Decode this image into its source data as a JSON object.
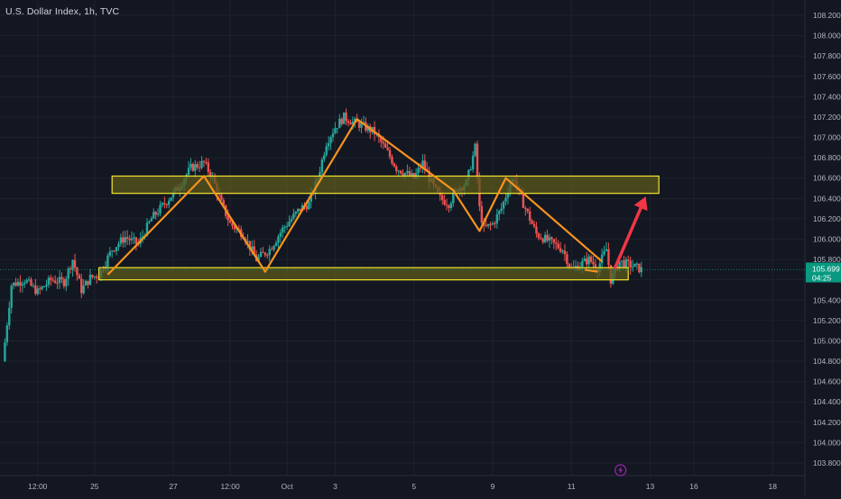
{
  "header": {
    "title": "U.S. Dollar Index, 1h, TVC"
  },
  "price_badge": {
    "value": "105.699",
    "countdown": "04:25"
  },
  "colors": {
    "background": "#131722",
    "grid": "#1e222d",
    "up": "#26a69a",
    "down": "#ef5350",
    "axis_text": "#b2b5be",
    "zone_fill": "#5c5a1c",
    "zone_border": "#f5e62b",
    "pattern_line": "#f7931e",
    "arrow": "#f23645",
    "badge_bg": "#089981"
  },
  "icons": {
    "bottom_marker": "lightning-icon"
  },
  "chart_data": {
    "type": "candlestick",
    "title": "U.S. Dollar Index, 1h, TVC",
    "ylim": [
      103.7,
      108.25
    ],
    "y_ticks": [
      "108.200",
      "108.000",
      "107.800",
      "107.600",
      "107.400",
      "107.200",
      "107.000",
      "106.800",
      "106.600",
      "106.400",
      "106.200",
      "106.000",
      "105.800",
      "105.600",
      "105.400",
      "105.200",
      "105.000",
      "104.800",
      "104.600",
      "104.400",
      "104.200",
      "104.000",
      "103.800"
    ],
    "x_ticks": [
      {
        "label": "12:00",
        "t": 8
      },
      {
        "label": "25",
        "t": 21
      },
      {
        "label": "27",
        "t": 39
      },
      {
        "label": "12:00",
        "t": 52
      },
      {
        "label": "Oct",
        "t": 65
      },
      {
        "label": "3",
        "t": 76
      },
      {
        "label": "5",
        "t": 94
      },
      {
        "label": "9",
        "t": 112
      },
      {
        "label": "11",
        "t": 130
      },
      {
        "label": "13",
        "t": 148
      },
      {
        "label": "16",
        "t": 158
      },
      {
        "label": "18",
        "t": 176
      }
    ],
    "t_range": [
      0,
      184
    ],
    "grid": true,
    "current_price": 105.699,
    "price_path": [
      [
        0,
        104.8
      ],
      [
        2,
        105.55
      ],
      [
        5,
        105.6
      ],
      [
        8,
        105.48
      ],
      [
        11,
        105.6
      ],
      [
        14,
        105.58
      ],
      [
        16,
        105.8
      ],
      [
        18,
        105.5
      ],
      [
        20,
        105.62
      ],
      [
        22,
        105.65
      ],
      [
        25,
        105.9
      ],
      [
        28,
        106.02
      ],
      [
        31,
        105.95
      ],
      [
        34,
        106.2
      ],
      [
        37,
        106.35
      ],
      [
        40,
        106.5
      ],
      [
        43,
        106.7
      ],
      [
        46,
        106.75
      ],
      [
        48,
        106.6
      ],
      [
        50,
        106.35
      ],
      [
        52,
        106.15
      ],
      [
        55,
        106.05
      ],
      [
        58,
        105.8
      ],
      [
        61,
        105.9
      ],
      [
        64,
        106.1
      ],
      [
        66,
        106.2
      ],
      [
        68,
        106.3
      ],
      [
        70,
        106.35
      ],
      [
        72,
        106.6
      ],
      [
        74,
        106.95
      ],
      [
        76,
        107.1
      ],
      [
        78,
        107.2
      ],
      [
        80,
        107.15
      ],
      [
        82,
        107.12
      ],
      [
        85,
        107.05
      ],
      [
        88,
        106.85
      ],
      [
        90,
        106.7
      ],
      [
        92,
        106.65
      ],
      [
        94,
        106.6
      ],
      [
        96,
        106.75
      ],
      [
        98,
        106.55
      ],
      [
        100,
        106.4
      ],
      [
        102,
        106.35
      ],
      [
        104,
        106.5
      ],
      [
        106,
        106.55
      ],
      [
        108,
        106.9
      ],
      [
        109,
        106.3
      ],
      [
        110,
        106.1
      ],
      [
        112,
        106.15
      ],
      [
        114,
        106.3
      ],
      [
        116,
        106.55
      ],
      [
        117,
        106.6
      ],
      [
        118,
        106.45
      ],
      [
        120,
        106.25
      ],
      [
        122,
        106.05
      ],
      [
        124,
        106.0
      ],
      [
        126,
        105.95
      ],
      [
        128,
        105.9
      ],
      [
        130,
        105.7
      ],
      [
        132,
        105.75
      ],
      [
        134,
        105.8
      ],
      [
        136,
        105.72
      ],
      [
        138,
        105.9
      ],
      [
        139,
        105.6
      ],
      [
        141,
        105.78
      ],
      [
        143,
        105.75
      ],
      [
        145,
        105.72
      ],
      [
        146,
        105.7
      ]
    ],
    "zones": [
      {
        "t1": 25,
        "t2": 150,
        "p1": 106.45,
        "p2": 106.62
      },
      {
        "t1": 22,
        "t2": 143,
        "p1": 105.6,
        "p2": 105.72
      }
    ],
    "pattern_lines": [
      [
        [
          24,
          105.65
        ],
        [
          46,
          106.62
        ],
        [
          60,
          105.68
        ],
        [
          81,
          107.18
        ],
        [
          103,
          106.48
        ],
        [
          109,
          106.08
        ],
        [
          115,
          106.6
        ],
        [
          137,
          105.78
        ]
      ],
      [
        [
          133,
          105.7
        ],
        [
          136,
          105.68
        ]
      ]
    ],
    "arrow": {
      "from": [
        140,
        105.72
      ],
      "to": [
        147,
        106.42
      ]
    },
    "marker_t": 140
  }
}
